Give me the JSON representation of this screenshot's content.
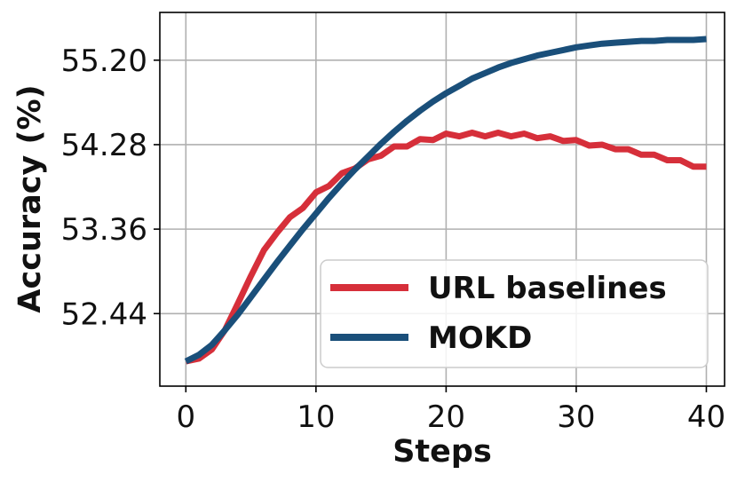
{
  "chart_data": {
    "type": "line",
    "xlabel": "Steps",
    "ylabel": "Accuracy (%)",
    "xlim": [
      -2,
      41.4
    ],
    "ylim": [
      51.65,
      55.72
    ],
    "x_ticks": [
      0,
      10,
      20,
      30,
      40
    ],
    "y_ticks": [
      52.44,
      53.36,
      54.28,
      55.2
    ],
    "y_tick_labels": [
      "52.44",
      "53.36",
      "54.28",
      "55.20"
    ],
    "grid": true,
    "legend_position": "lower-right",
    "x": [
      0,
      1,
      2,
      3,
      4,
      5,
      6,
      7,
      8,
      9,
      10,
      11,
      12,
      13,
      14,
      15,
      16,
      17,
      18,
      19,
      20,
      21,
      22,
      23,
      24,
      25,
      26,
      27,
      28,
      29,
      30,
      31,
      32,
      33,
      34,
      35,
      36,
      37,
      38,
      39,
      40
    ],
    "series": [
      {
        "name": "URL baselines",
        "color": "#d62f3a",
        "values": [
          51.92,
          51.95,
          52.05,
          52.26,
          52.55,
          52.85,
          53.13,
          53.32,
          53.49,
          53.59,
          53.76,
          53.83,
          53.97,
          54.02,
          54.12,
          54.16,
          54.26,
          54.26,
          54.34,
          54.33,
          54.4,
          54.37,
          54.41,
          54.37,
          54.41,
          54.37,
          54.4,
          54.35,
          54.37,
          54.32,
          54.33,
          54.27,
          54.28,
          54.23,
          54.23,
          54.17,
          54.17,
          54.11,
          54.11,
          54.04,
          54.04
        ]
      },
      {
        "name": "MOKD",
        "color": "#1a4f7a",
        "values": [
          51.92,
          51.99,
          52.1,
          52.26,
          52.43,
          52.62,
          52.81,
          53.0,
          53.18,
          53.36,
          53.53,
          53.7,
          53.86,
          54.01,
          54.15,
          54.29,
          54.42,
          54.54,
          54.65,
          54.75,
          54.84,
          54.92,
          55.0,
          55.06,
          55.12,
          55.17,
          55.21,
          55.25,
          55.28,
          55.31,
          55.34,
          55.36,
          55.38,
          55.39,
          55.4,
          55.41,
          55.41,
          55.42,
          55.42,
          55.42,
          55.43
        ]
      }
    ]
  }
}
